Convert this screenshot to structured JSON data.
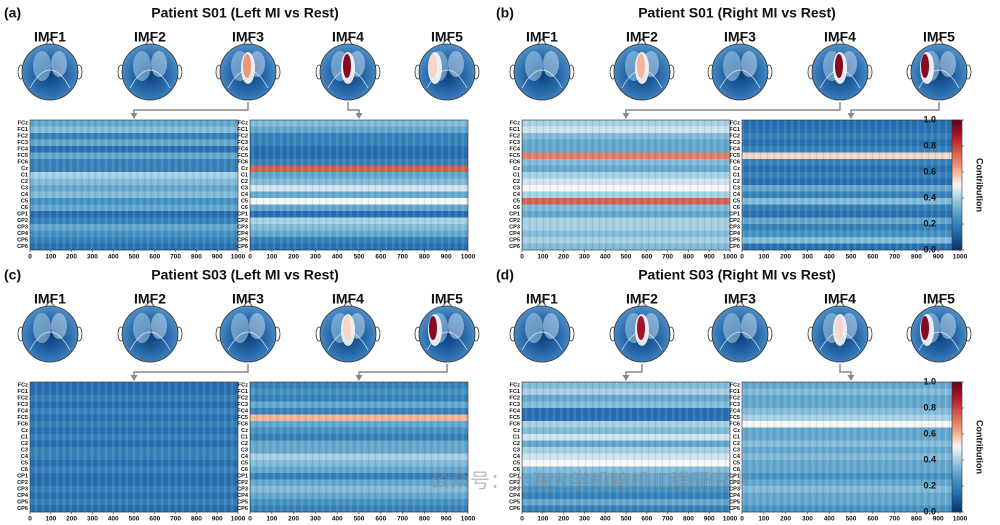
{
  "panels": [
    {
      "label": "(a)",
      "title": "Patient S01 (Left MI vs Rest)",
      "imf_labels": [
        "IMF1",
        "IMF2",
        "IMF3",
        "IMF4",
        "IMF5"
      ]
    },
    {
      "label": "(b)",
      "title": "Patient S01 (Right MI vs Rest)",
      "imf_labels": [
        "IMF1",
        "IMF2",
        "IMF3",
        "IMF4",
        "IMF5"
      ]
    },
    {
      "label": "(c)",
      "title": "Patient S03 (Left MI vs Rest)",
      "imf_labels": [
        "IMF1",
        "IMF2",
        "IMF3",
        "IMF4",
        "IMF5"
      ]
    },
    {
      "label": "(d)",
      "title": "Patient S03 (Right MI vs Rest)",
      "imf_labels": [
        "IMF1",
        "IMF2",
        "IMF3",
        "IMF4",
        "IMF5"
      ]
    }
  ],
  "heatmap_axes": {
    "categories": [
      "FCz",
      "FC1",
      "FC2",
      "FC3",
      "FC4",
      "FC5",
      "FC6",
      "Cz",
      "C1",
      "C2",
      "C3",
      "C4",
      "C5",
      "C6",
      "CP1",
      "CP2",
      "CP3",
      "CP4",
      "CP5",
      "CP6"
    ],
    "xlim": [
      0,
      1000
    ],
    "xticks": [
      0,
      100,
      200,
      300,
      400,
      500,
      600,
      700,
      800,
      900,
      1000
    ]
  },
  "chart_data": [
    {
      "type": "heatmap",
      "values": [
        0.3,
        0.35,
        0.2,
        0.3,
        0.15,
        0.3,
        0.2,
        0.2,
        0.4,
        0.35,
        0.3,
        0.35,
        0.25,
        0.3,
        0.15,
        0.2,
        0.3,
        0.25,
        0.2,
        0.15
      ]
    },
    {
      "type": "heatmap",
      "values": [
        0.35,
        0.3,
        0.2,
        0.2,
        0.15,
        0.15,
        0.2,
        0.75,
        0.3,
        0.35,
        0.45,
        0.3,
        0.5,
        0.3,
        0.15,
        0.4,
        0.35,
        0.3,
        0.2,
        0.15
      ]
    },
    {
      "type": "heatmap",
      "values": [
        0.4,
        0.45,
        0.35,
        0.3,
        0.3,
        0.7,
        0.35,
        0.3,
        0.4,
        0.45,
        0.5,
        0.4,
        0.75,
        0.35,
        0.3,
        0.4,
        0.4,
        0.35,
        0.4,
        0.35
      ]
    },
    {
      "type": "heatmap",
      "values": [
        0.15,
        0.15,
        0.2,
        0.15,
        0.2,
        0.55,
        0.2,
        0.15,
        0.2,
        0.15,
        0.3,
        0.2,
        0.35,
        0.2,
        0.15,
        0.3,
        0.2,
        0.25,
        0.35,
        0.15
      ]
    },
    {
      "type": "heatmap",
      "values": [
        0.15,
        0.15,
        0.2,
        0.15,
        0.2,
        0.15,
        0.2,
        0.15,
        0.2,
        0.15,
        0.2,
        0.2,
        0.15,
        0.2,
        0.15,
        0.15,
        0.2,
        0.15,
        0.2,
        0.15
      ]
    },
    {
      "type": "heatmap",
      "values": [
        0.2,
        0.25,
        0.2,
        0.3,
        0.2,
        0.6,
        0.3,
        0.25,
        0.2,
        0.3,
        0.3,
        0.4,
        0.35,
        0.3,
        0.2,
        0.3,
        0.35,
        0.3,
        0.25,
        0.2
      ]
    },
    {
      "type": "heatmap",
      "values": [
        0.35,
        0.4,
        0.3,
        0.35,
        0.15,
        0.15,
        0.4,
        0.35,
        0.45,
        0.3,
        0.4,
        0.45,
        0.5,
        0.35,
        0.3,
        0.3,
        0.25,
        0.2,
        0.3,
        0.2
      ]
    },
    {
      "type": "heatmap",
      "values": [
        0.3,
        0.35,
        0.3,
        0.3,
        0.35,
        0.4,
        0.5,
        0.3,
        0.3,
        0.35,
        0.3,
        0.35,
        0.3,
        0.3,
        0.25,
        0.3,
        0.35,
        0.3,
        0.3,
        0.25
      ]
    }
  ],
  "colorbar": {
    "label": "Contribution",
    "colormap": "RdBu_r",
    "lim": [
      0,
      1
    ],
    "ticks": [
      {
        "value": 0,
        "label": "0.0"
      },
      0.2,
      0.4,
      0.6,
      0.8,
      {
        "value": 1,
        "label": "1.0"
      }
    ]
  },
  "watermark": "公众号：上海大学机脑机工程研究中"
}
